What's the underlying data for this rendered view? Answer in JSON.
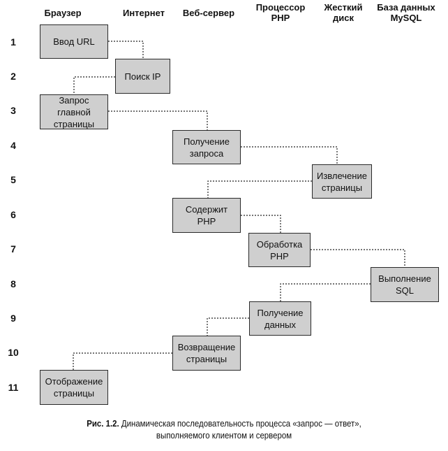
{
  "columns": [
    "Браузер",
    "Интернет",
    "Веб-сервер",
    "Процессор\nPHP",
    "Жесткий\nдиск",
    "База данных\nMySQL"
  ],
  "rows": [
    "1",
    "2",
    "3",
    "4",
    "5",
    "6",
    "7",
    "8",
    "9",
    "10",
    "11"
  ],
  "steps": [
    "Ввод URL",
    "Поиск IP",
    "Запрос\nглавной\nстраницы",
    "Получение\nзапроса",
    "Извлечение\nстраницы",
    "Содержит\nPHP",
    "Обработка\nPHP",
    "Выполнение\nSQL",
    "Получение\nданных",
    "Возвращение\nстраницы",
    "Отображение\nстраницы"
  ],
  "caption": {
    "label": "Рис. 1.2.",
    "line1": "Динамическая последовательность процесса «запрос — ответ»,",
    "line2": "выполняемого клиентом и сервером"
  }
}
